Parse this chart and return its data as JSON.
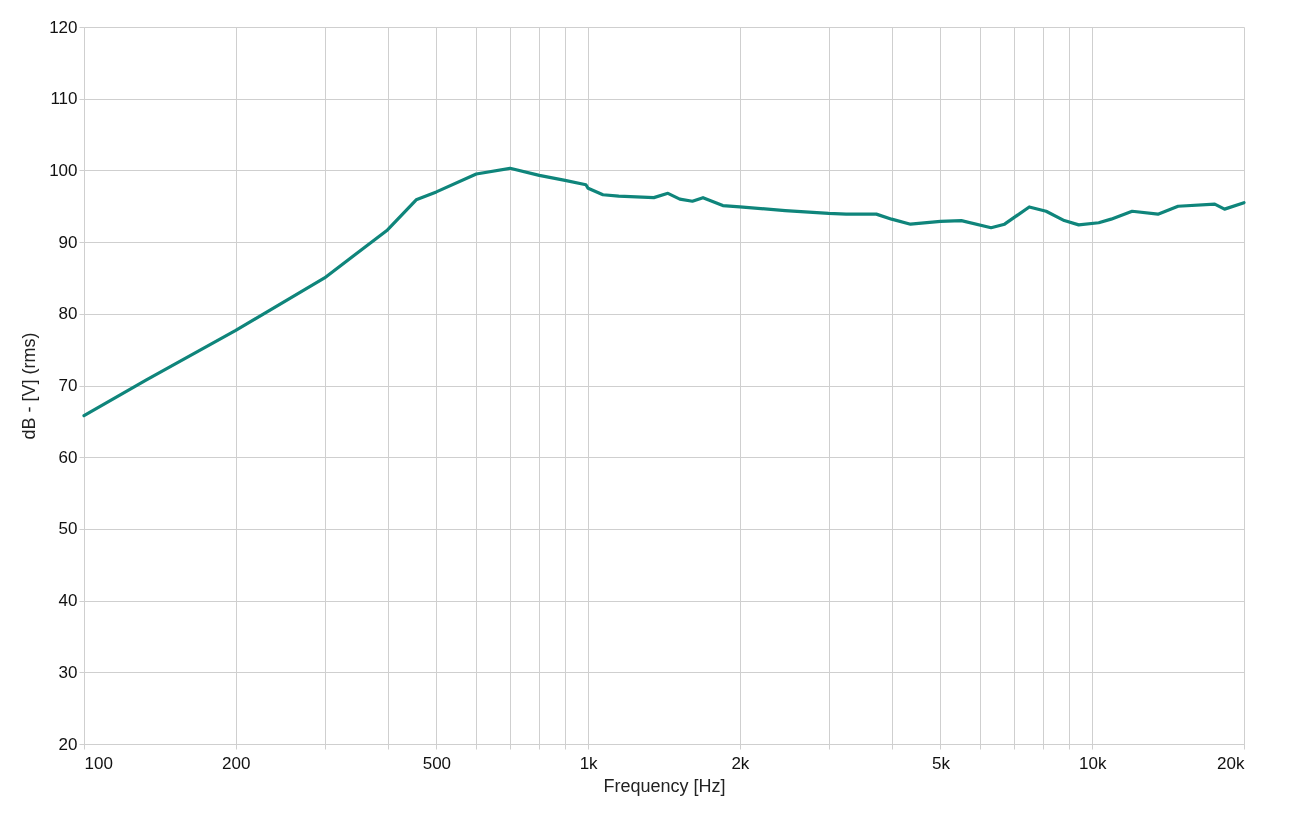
{
  "chart_data": {
    "type": "line",
    "xlabel": "Frequency [Hz]",
    "ylabel": "dB - [V]  (rms)",
    "x": [
      100,
      133,
      200,
      300,
      400,
      456,
      500,
      600,
      700,
      800,
      900,
      990,
      1000,
      1070,
      1150,
      1350,
      1440,
      1520,
      1610,
      1690,
      1850,
      2000,
      2460,
      3000,
      3250,
      3730,
      4000,
      4360,
      5000,
      5500,
      6300,
      6700,
      7500,
      8100,
      8800,
      9400,
      10300,
      10900,
      12000,
      13500,
      14800,
      17500,
      18300,
      20000
    ],
    "series": [
      {
        "color": "#0f857b",
        "values": [
          65.8,
          70.8,
          77.7,
          85.0,
          91.7,
          95.9,
          97.0,
          99.5,
          100.3,
          99.3,
          98.6,
          98.0,
          97.5,
          96.6,
          96.4,
          96.2,
          96.8,
          96.0,
          95.7,
          96.2,
          95.1,
          94.9,
          94.4,
          94.0,
          93.9,
          93.9,
          93.2,
          92.5,
          92.9,
          93.0,
          92.0,
          92.5,
          94.9,
          94.3,
          93.0,
          92.4,
          92.7,
          93.2,
          94.3,
          93.9,
          95.0,
          95.3,
          94.6,
          95.5
        ]
      }
    ],
    "log": "x",
    "xlim": [
      100,
      20000
    ],
    "xticks": [
      100,
      200,
      {
        "value": 300,
        "label": null
      },
      {
        "value": 400,
        "label": null
      },
      500,
      {
        "value": 600,
        "label": null
      },
      {
        "value": 700,
        "label": null
      },
      {
        "value": 800,
        "label": null
      },
      {
        "value": 900,
        "label": null
      },
      {
        "value": 1000,
        "label": "1k"
      },
      {
        "value": 2000,
        "label": "2k"
      },
      {
        "value": 3000,
        "label": null
      },
      {
        "value": 4000,
        "label": null
      },
      {
        "value": 5000,
        "label": "5k"
      },
      {
        "value": 6000,
        "label": null
      },
      {
        "value": 7000,
        "label": null
      },
      {
        "value": 8000,
        "label": null
      },
      {
        "value": 9000,
        "label": null
      },
      {
        "value": 10000,
        "label": "10k"
      },
      {
        "value": 20000,
        "label": "20k"
      }
    ],
    "ylim": [
      20,
      120
    ],
    "yticks": [
      20,
      30,
      40,
      50,
      60,
      70,
      80,
      90,
      100,
      110,
      120
    ],
    "grid": true,
    "marker": "none",
    "line_style": "solid"
  }
}
